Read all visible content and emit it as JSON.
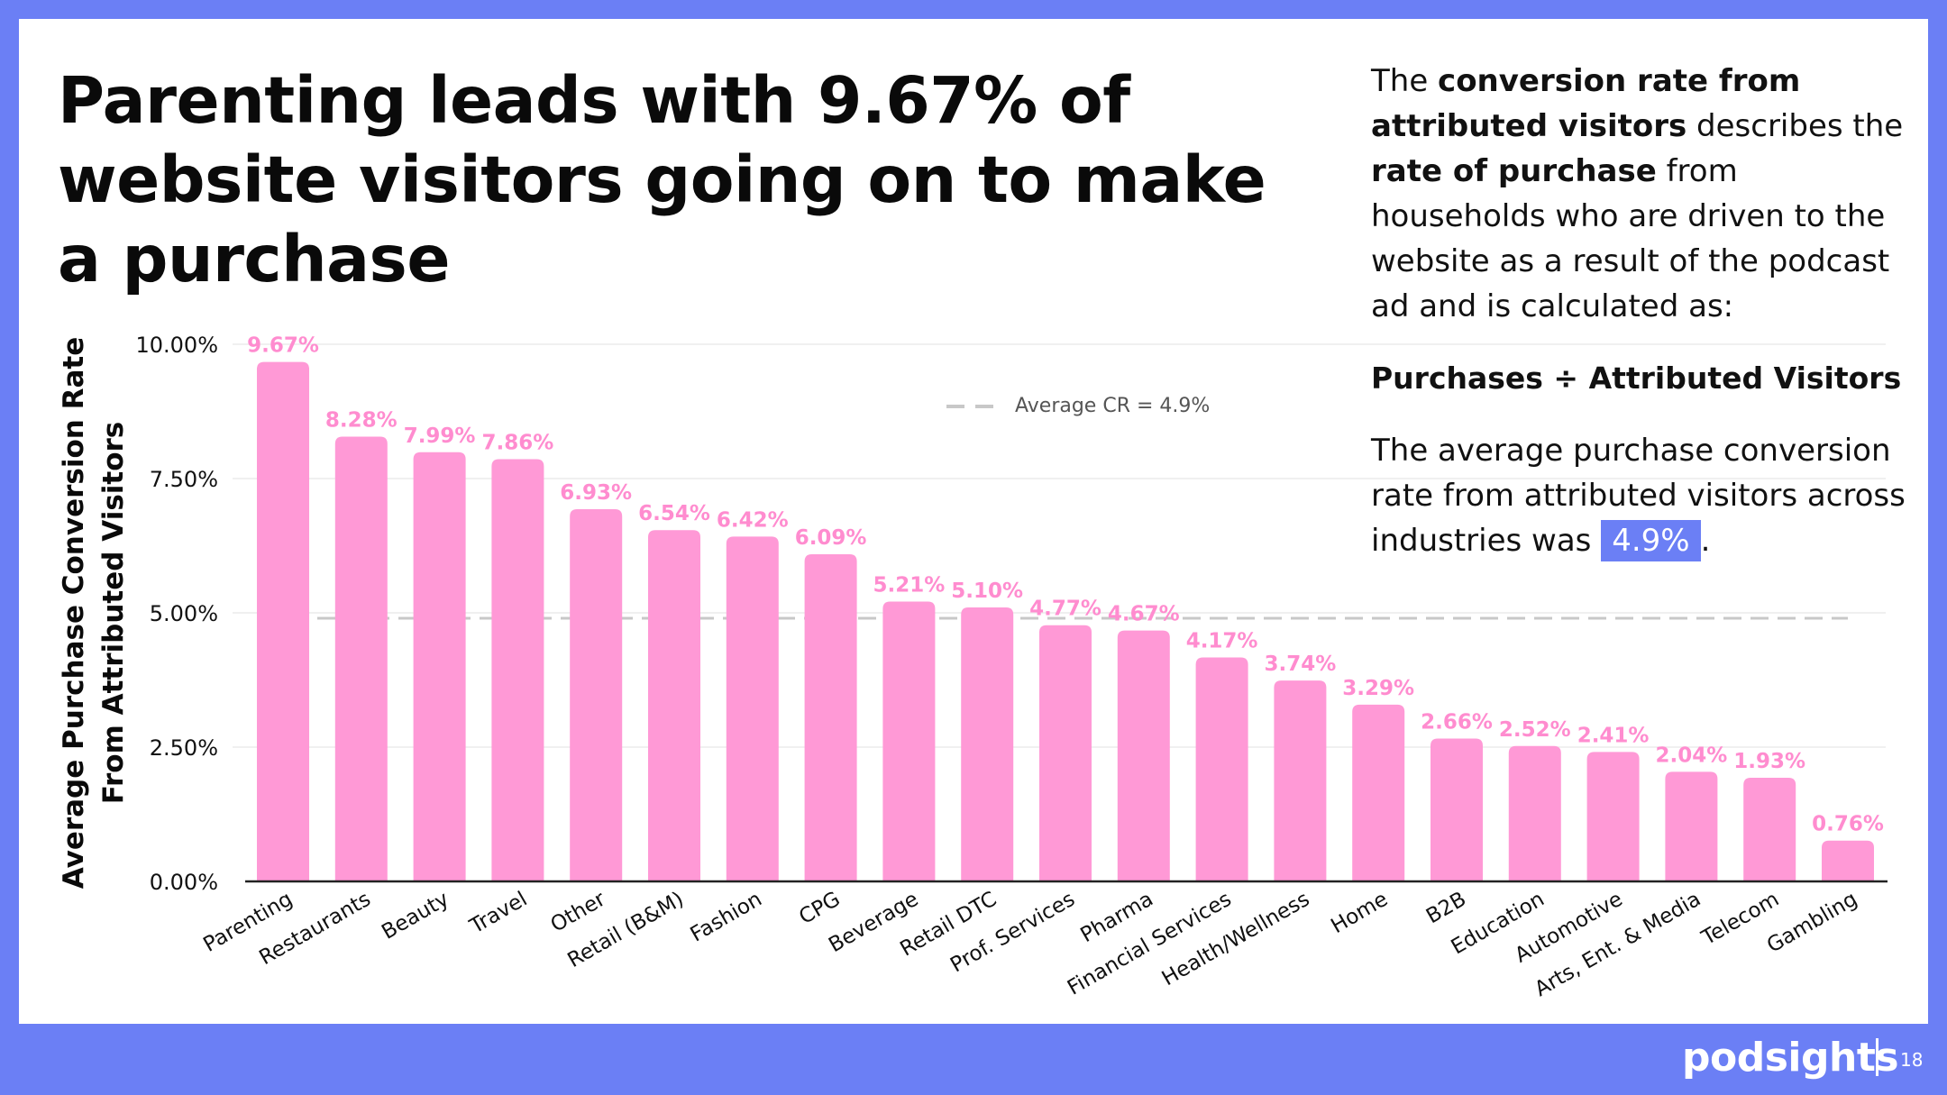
{
  "slide": {
    "title": "Parenting leads with 9.67% of website visitors going on to make a purchase",
    "page_number": "18",
    "brand": "podsights",
    "colors": {
      "frame": "#6b7ff5",
      "bar": "#ff99d6",
      "bar_label": "#ff8ccf",
      "average_line": "#c8c8c8"
    }
  },
  "panel": {
    "p1_a": "The ",
    "p1_b": "conversion rate from attributed visitors",
    "p1_c": " describes the ",
    "p1_d": "rate of purchase",
    "p1_e": " from households who are driven to the website as a result of the podcast ad and is calculated as:",
    "formula": "Purchases ÷ Attributed Visitors",
    "p2_a": "The average purchase conversion rate from attributed visitors across industries was ",
    "p2_highlight": "4.9%",
    "p2_end": "."
  },
  "chart_data": {
    "type": "bar",
    "title": "",
    "xlabel": "",
    "ylabel": "Average Purchase Conversion Rate From Attributed Visitors",
    "ylabel_lines": [
      "Average Purchase Conversion Rate",
      "From Attributed Visitors"
    ],
    "ylim": [
      0,
      10
    ],
    "yticks": [
      "0.00%",
      "2.50%",
      "5.00%",
      "7.50%",
      "10.00%"
    ],
    "ytick_values": [
      0,
      2.5,
      5,
      7.5,
      10
    ],
    "grid": true,
    "categories": [
      "Parenting",
      "Restaurants",
      "Beauty",
      "Travel",
      "Other",
      "Retail (B&M)",
      "Fashion",
      "CPG",
      "Beverage",
      "Retail DTC",
      "Prof. Services",
      "Pharma",
      "Financial Services",
      "Health/Wellness",
      "Home",
      "B2B",
      "Education",
      "Automotive",
      "Arts, Ent. & Media",
      "Telecom",
      "Gambling"
    ],
    "values": [
      9.67,
      8.28,
      7.99,
      7.86,
      6.93,
      6.54,
      6.42,
      6.09,
      5.21,
      5.1,
      4.77,
      4.67,
      4.17,
      3.74,
      3.29,
      2.66,
      2.52,
      2.41,
      2.04,
      1.93,
      0.76
    ],
    "data_labels": [
      "9.67%",
      "8.28%",
      "7.99%",
      "7.86%",
      "6.93%",
      "6.54%",
      "6.42%",
      "6.09%",
      "5.21%",
      "5.10%",
      "4.77%",
      "4.67%",
      "4.17%",
      "3.74%",
      "3.29%",
      "2.66%",
      "2.52%",
      "2.41%",
      "2.04%",
      "1.93%",
      "0.76%"
    ],
    "average": {
      "value": 4.9,
      "label": "Average CR = 4.9%",
      "style": "dashed"
    },
    "legend_position": "top-center"
  }
}
